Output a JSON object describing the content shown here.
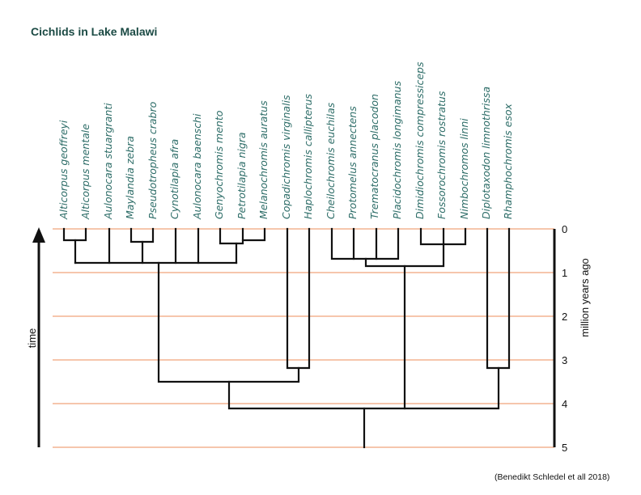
{
  "title": "Cichlids in Lake Malawi",
  "credit": "(Benedikt Schledel et all 2018)",
  "time_label": "time",
  "axis": {
    "label": "million years ago",
    "ticks": [
      "0",
      "1",
      "2",
      "3",
      "4",
      "5"
    ]
  },
  "taxa": [
    "Alticorpus geoffreyi",
    "Alticorpus mentale",
    "Aulonocara stuargranti",
    "Maylandia zebra",
    "Pseudotropheus crabro",
    "Cynotilapia afra",
    "Aulonocara baenschi",
    "Genyochromis mento",
    "Petrotilapia nigra",
    "Melanochromis auratus",
    "Copadichromis virginalis",
    "Haplochromis callipterus",
    "Cheilochromis euchilas",
    "Protomelus annectens",
    "Trematocranus placodon",
    "Placidochromis longimanus",
    "Dimidiochromis compressiceps",
    "Fossorochromis rostratus",
    "Nimbochromos linni",
    "Diplotaxodon limnothrissa",
    "Rhamphochromis esox"
  ],
  "colors": {
    "grid": "#f0a57b",
    "taxon_text": "#2f6e69",
    "title": "#1b4a44",
    "branches": "#111111"
  }
}
